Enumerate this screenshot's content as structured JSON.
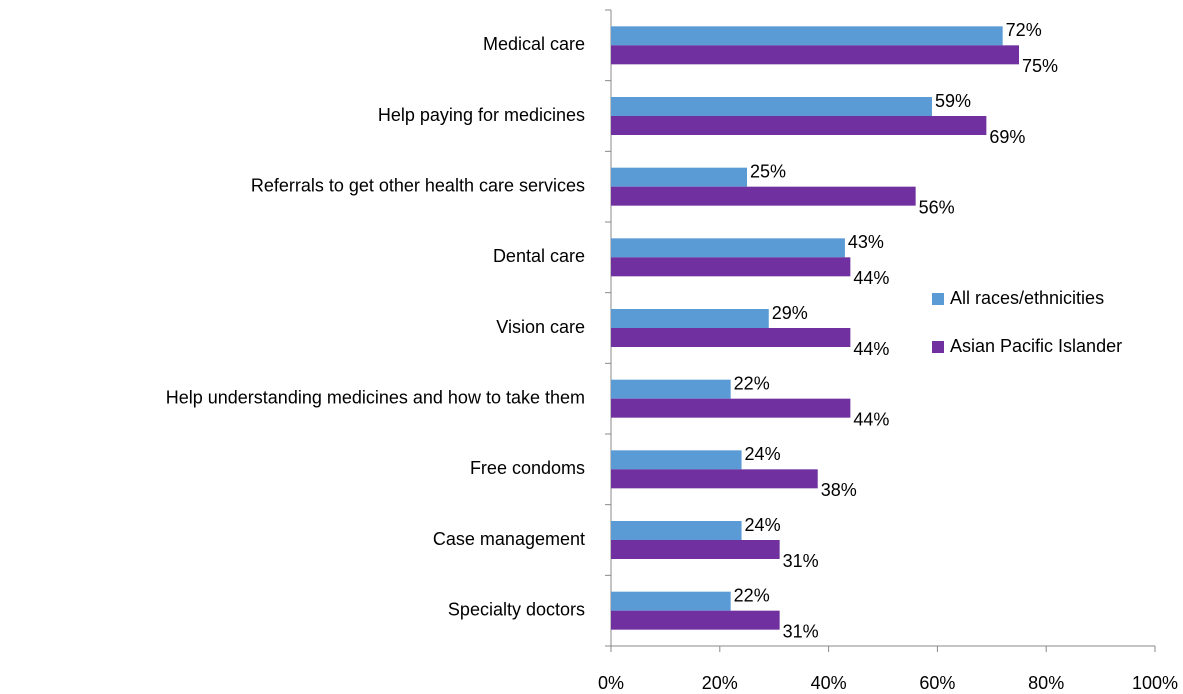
{
  "chart_data": {
    "type": "bar",
    "orientation": "horizontal",
    "categories": [
      "Medical care",
      "Help paying for medicines",
      "Referrals to get other health care services",
      "Dental care",
      "Vision care",
      "Help understanding medicines and how to take them",
      "Free condoms",
      "Case management",
      "Specialty doctors"
    ],
    "series": [
      {
        "name": "All races/ethnicities",
        "color": "#5b9bd5",
        "values": [
          72,
          59,
          25,
          43,
          29,
          22,
          24,
          24,
          22
        ],
        "value_labels": [
          "72%",
          "59%",
          "25%",
          "43%",
          "29%",
          "22%",
          "24%",
          "24%",
          "22%"
        ]
      },
      {
        "name": "Asian Pacific Islander",
        "color": "#7030a0",
        "values": [
          75,
          69,
          56,
          44,
          44,
          44,
          38,
          31,
          31
        ],
        "value_labels": [
          "75%",
          "69%",
          "56%",
          "44%",
          "44%",
          "44%",
          "38%",
          "31%",
          "31%"
        ]
      }
    ],
    "xlim": [
      0,
      100
    ],
    "xticks": [
      {
        "value": 0,
        "label": "0%"
      },
      {
        "value": 20,
        "label": "20%"
      },
      {
        "value": 40,
        "label": "40%"
      },
      {
        "value": 60,
        "label": "60%"
      },
      {
        "value": 80,
        "label": "80%"
      },
      {
        "value": 100,
        "label": "100%"
      }
    ],
    "legend": "right"
  }
}
